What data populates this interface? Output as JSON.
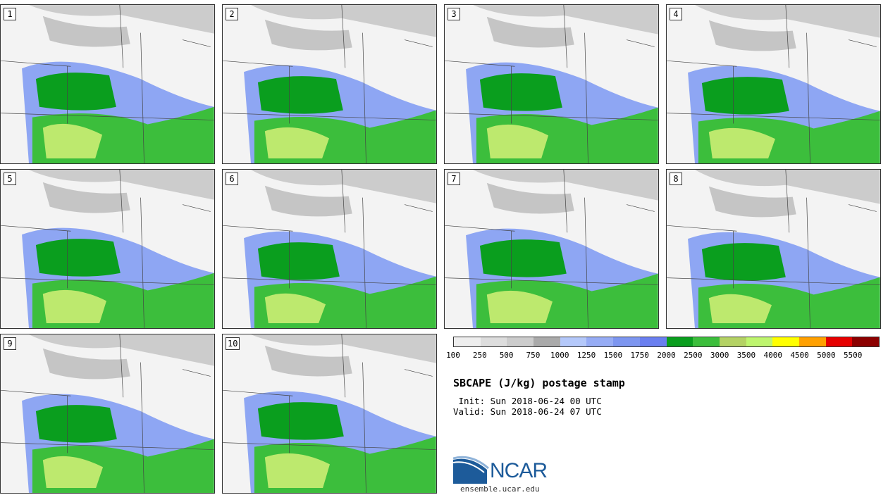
{
  "panels": [
    {
      "label": "1"
    },
    {
      "label": "2"
    },
    {
      "label": "3"
    },
    {
      "label": "4"
    },
    {
      "label": "5"
    },
    {
      "label": "6"
    },
    {
      "label": "7"
    },
    {
      "label": "8"
    },
    {
      "label": "9"
    },
    {
      "label": "10"
    }
  ],
  "colorbar": {
    "colors": [
      "#eeeeee",
      "#dddddd",
      "#cccccc",
      "#aaaaaa",
      "#b4c8fa",
      "#96acf5",
      "#7d96f0",
      "#6a7ff0",
      "#0a9e1e",
      "#3cbe3c",
      "#b4d264",
      "#bef56e",
      "#ffff00",
      "#ffa000",
      "#e60000",
      "#8c0000"
    ],
    "tick_labels": [
      "100",
      "250",
      "500",
      "750",
      "1000",
      "1250",
      "1500",
      "1750",
      "2000",
      "2500",
      "3000",
      "3500",
      "4000",
      "4500",
      "5000",
      "5500"
    ]
  },
  "title": "SBCAPE (J/kg) postage stamp",
  "init_text": " Init: Sun 2018-06-24 00 UTC",
  "valid_text": "Valid: Sun 2018-06-24 07 UTC",
  "logo": {
    "text": "NCAR",
    "url": "ensemble.ucar.edu",
    "color": "#1d5b9a"
  }
}
